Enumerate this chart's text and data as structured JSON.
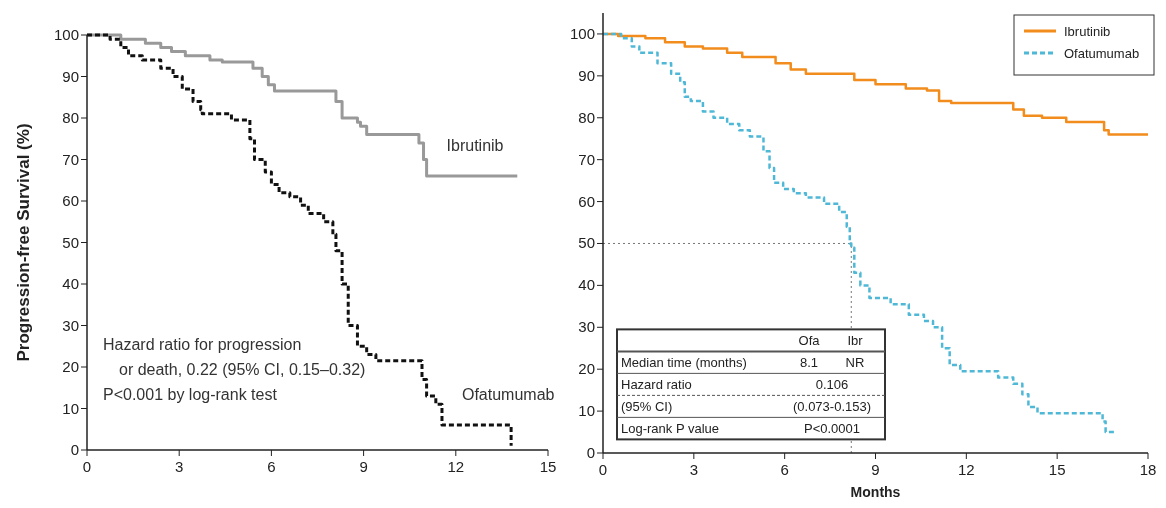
{
  "chart_data": [
    {
      "type": "step",
      "ylabel": "Progression-free Survival (%)",
      "xlim": [
        0,
        15
      ],
      "xticks": [
        0,
        3,
        6,
        9,
        12,
        15
      ],
      "ylim": [
        0,
        100
      ],
      "yticks": [
        0,
        10,
        20,
        30,
        40,
        50,
        60,
        70,
        80,
        90,
        100
      ],
      "grid": false,
      "legend": false,
      "annotations": [
        "Hazard ratio for progression",
        "or death, 0.22 (95% CI, 0.15–0.32)",
        "P<0.001 by log-rank test"
      ],
      "series": [
        {
          "name": "Ibrutinib",
          "color": "#999999",
          "line_style": "solid",
          "x": [
            0,
            1.1,
            1.9,
            2.4,
            2.75,
            3.2,
            4,
            4.4,
            5.4,
            5.7,
            5.9,
            6.1,
            8.1,
            8.3,
            8.8,
            8.9,
            9.1,
            10.8,
            10.95,
            11.05,
            14.0
          ],
          "values": [
            100,
            99,
            98,
            97,
            96,
            95,
            94,
            93.5,
            92,
            90,
            88,
            86.5,
            84,
            80,
            79,
            78,
            76,
            74,
            70,
            66,
            66
          ]
        },
        {
          "name": "Ofatumumab",
          "color": "#111111",
          "line_style": "dashed",
          "x": [
            0,
            0.75,
            1.1,
            1.35,
            1.8,
            2.4,
            2.8,
            3.1,
            3.45,
            3.7,
            3.75,
            4.7,
            5.3,
            5.45,
            5.8,
            6.0,
            6.25,
            6.6,
            6.95,
            7.2,
            7.7,
            8.0,
            8.1,
            8.3,
            8.5,
            8.8,
            9.1,
            9.4,
            10.9,
            11.05,
            11.35,
            11.55,
            13.8
          ],
          "values": [
            100,
            99,
            97,
            95,
            94,
            92,
            90,
            87,
            84,
            82,
            81,
            79.5,
            75,
            70,
            67,
            64,
            62,
            61,
            59,
            57,
            55,
            52,
            48,
            40,
            30,
            25,
            23,
            21.5,
            17,
            13,
            11,
            6,
            1
          ]
        }
      ]
    },
    {
      "type": "step",
      "xlabel": "Months",
      "xlim": [
        0,
        18
      ],
      "xticks": [
        0,
        3,
        6,
        9,
        12,
        15,
        18
      ],
      "ylim": [
        0,
        105
      ],
      "yticks": [
        0,
        10,
        20,
        30,
        40,
        50,
        60,
        70,
        80,
        90,
        100
      ],
      "grid": false,
      "legend": "top right",
      "ref_lines": [
        {
          "axis": "y",
          "value": 50,
          "color": "#777777",
          "line_style": "dotted"
        },
        {
          "axis": "x",
          "value": 8.2,
          "color": "#777777",
          "line_style": "dotted"
        }
      ],
      "annotations": [
        "Ofa",
        "Ibr",
        "Median time (months)",
        "8.1",
        "NR",
        "Hazard ratio",
        "0.106",
        "(95% CI)",
        "(0.073-0.153)",
        "Log-rank P value",
        "P<0.0001"
      ],
      "series": [
        {
          "name": "Ibrutinib",
          "color": "#f28c1c",
          "line_style": "solid",
          "x": [
            0,
            0.5,
            1.4,
            2.05,
            2.7,
            3.3,
            4.1,
            4.6,
            5.7,
            6.2,
            6.7,
            8.3,
            9.0,
            10.0,
            10.7,
            11.1,
            11.5,
            13.55,
            13.9,
            14.5,
            15.3,
            16.55,
            16.7,
            18.0
          ],
          "values": [
            100,
            99.5,
            99,
            98,
            97,
            96.5,
            95.5,
            94.5,
            93,
            91.5,
            90.5,
            89,
            88,
            87,
            86.5,
            84,
            83.5,
            82,
            80.5,
            80,
            79,
            77,
            76,
            76
          ]
        },
        {
          "name": "Ofatumumab",
          "color": "#4fb8d6",
          "line_style": "dashed",
          "x": [
            0,
            0.6,
            0.95,
            1.2,
            1.8,
            2.25,
            2.55,
            2.7,
            2.9,
            3.3,
            3.65,
            4.1,
            4.5,
            4.85,
            5.3,
            5.5,
            5.65,
            5.95,
            6.3,
            6.7,
            7.3,
            7.8,
            8.05,
            8.15,
            8.2,
            8.3,
            8.5,
            8.8,
            9.5,
            10.1,
            10.6,
            10.9,
            11.2,
            11.45,
            11.8,
            13.05,
            13.55,
            13.85,
            14.05,
            14.35,
            16.5,
            16.6,
            16.95
          ],
          "values": [
            100,
            99,
            97,
            95.5,
            93,
            90.5,
            88.5,
            85,
            84,
            81.5,
            80,
            78.5,
            77,
            75.5,
            72,
            68,
            64.5,
            63,
            62,
            61,
            59.5,
            57.5,
            54,
            50,
            49,
            43,
            40,
            37,
            35.5,
            33,
            31.5,
            30,
            25,
            21,
            19.5,
            18,
            16.5,
            14,
            11,
            9.5,
            7.5,
            5,
            5
          ]
        }
      ]
    }
  ]
}
